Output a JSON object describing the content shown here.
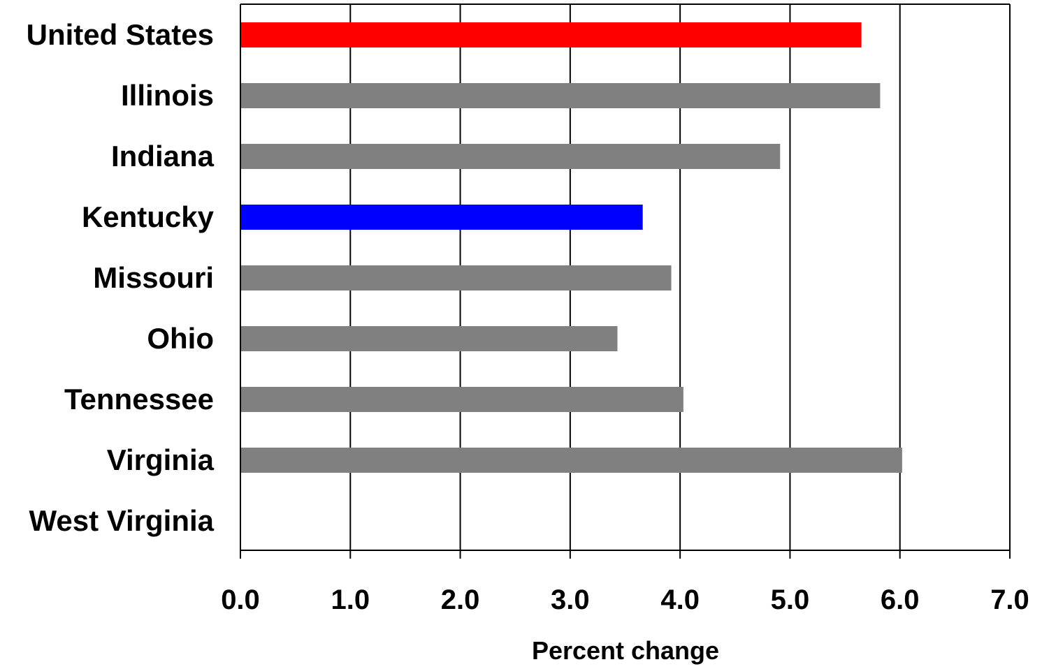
{
  "chart_data": {
    "type": "bar",
    "orientation": "horizontal",
    "categories": [
      "United States",
      "Illinois",
      "Indiana",
      "Kentucky",
      "Missouri",
      "Ohio",
      "Tennessee",
      "Virginia",
      "West Virginia"
    ],
    "values": [
      5.65,
      5.82,
      4.91,
      3.66,
      3.92,
      3.43,
      4.03,
      6.02,
      0
    ],
    "bar_colors": [
      "#FF0000",
      "#808080",
      "#808080",
      "#0000FF",
      "#808080",
      "#808080",
      "#808080",
      "#808080",
      "#808080"
    ],
    "xlabel": "Percent change",
    "ylabel": "",
    "title": "",
    "xlim": [
      0,
      7
    ],
    "xticks": [
      "0.0",
      "1.0",
      "2.0",
      "3.0",
      "4.0",
      "5.0",
      "6.0",
      "7.0"
    ],
    "grid": "vertical",
    "legend": "none"
  }
}
